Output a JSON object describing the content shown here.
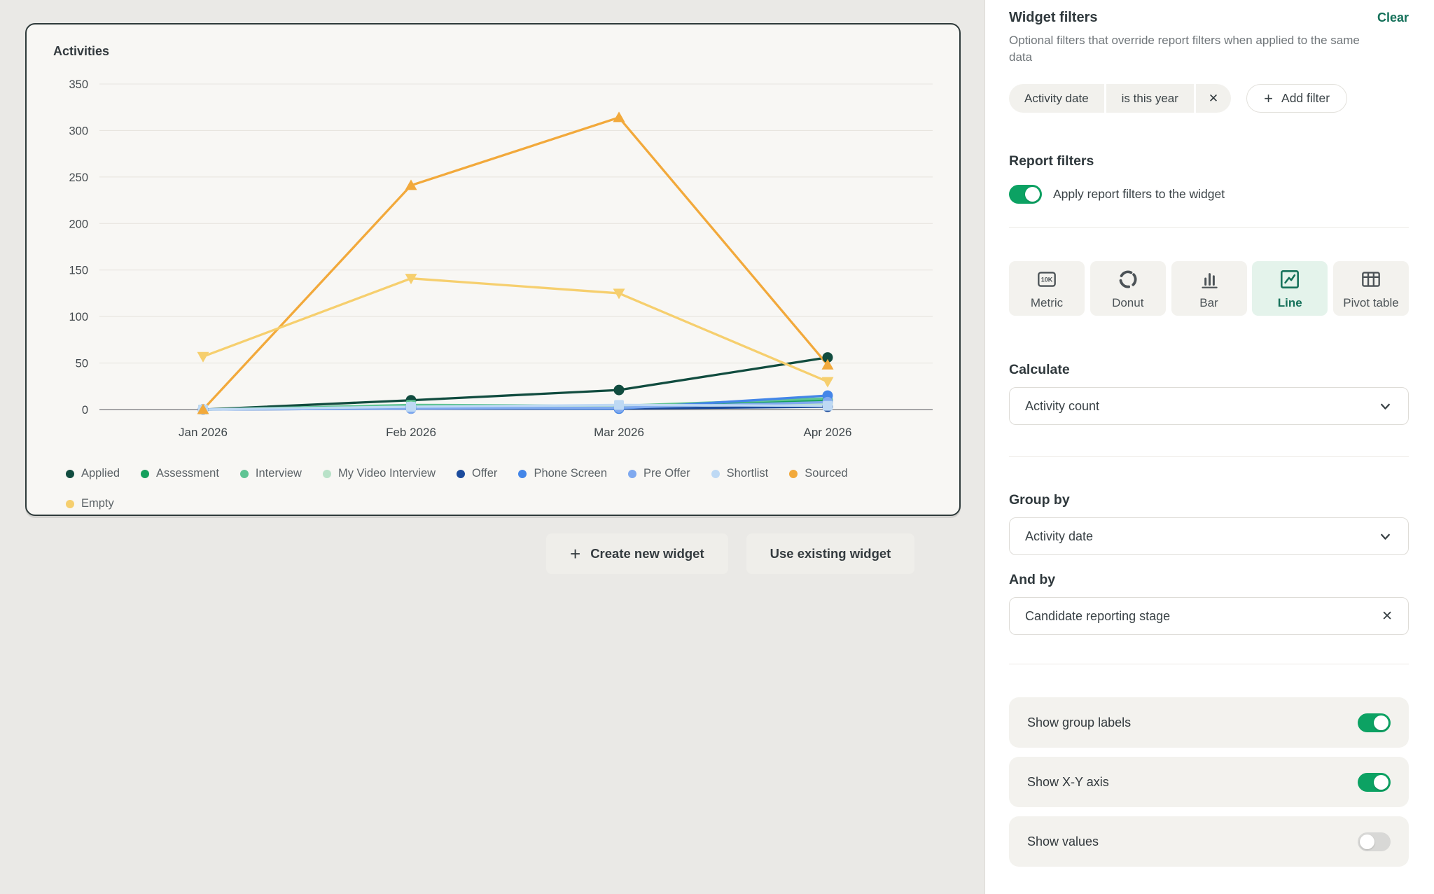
{
  "icons": {
    "plus": "+",
    "close": "✕"
  },
  "chart_card": {
    "title": "Activities"
  },
  "chart_data": {
    "type": "line",
    "title": "Activities",
    "categories": [
      "Jan 2026",
      "Feb 2026",
      "Mar 2026",
      "Apr 2026"
    ],
    "series": [
      {
        "name": "Applied",
        "color": "#114c3f",
        "marker": "circle",
        "values": [
          0,
          10,
          21,
          56
        ]
      },
      {
        "name": "Assessment",
        "color": "#16a05d",
        "marker": "circle",
        "values": [
          0,
          2,
          2,
          10
        ]
      },
      {
        "name": "Interview",
        "color": "#5fc493",
        "marker": "square",
        "values": [
          0,
          5,
          4,
          12
        ]
      },
      {
        "name": "My Video Interview",
        "color": "#b9e2c8",
        "marker": "circle",
        "values": [
          0,
          3,
          3,
          6
        ]
      },
      {
        "name": "Offer",
        "color": "#1c4b9c",
        "marker": "circle",
        "values": [
          0,
          1,
          1,
          3
        ]
      },
      {
        "name": "Phone Screen",
        "color": "#4486e8",
        "marker": "circle",
        "values": [
          0,
          2,
          1,
          15
        ]
      },
      {
        "name": "Pre Offer",
        "color": "#7fa9ef",
        "marker": "circle",
        "values": [
          0,
          1,
          2,
          8
        ]
      },
      {
        "name": "Shortlist",
        "color": "#bed9f4",
        "marker": "square",
        "values": [
          0,
          3,
          5,
          4
        ]
      },
      {
        "name": "Sourced",
        "color": "#f2a93b",
        "marker": "triangle-up",
        "values": [
          0,
          241,
          314,
          48
        ]
      },
      {
        "name": "Empty",
        "color": "#f6cf6e",
        "marker": "triangle-down",
        "values": [
          57,
          141,
          125,
          30
        ]
      }
    ],
    "ylim": [
      0,
      350
    ],
    "ytick_step": 50,
    "grid": true,
    "legend_position": "bottom"
  },
  "actions": {
    "create_new_widget": "Create new widget",
    "use_existing_widget": "Use existing widget"
  },
  "panel": {
    "widget_filters": {
      "title": "Widget filters",
      "clear": "Clear",
      "description": "Optional filters that override report filters when applied to the same data",
      "chip": {
        "field": "Activity date",
        "condition": "is this year"
      },
      "add_filter": "Add filter"
    },
    "report_filters": {
      "title": "Report filters",
      "toggle_label": "Apply report filters to the widget",
      "enabled": true
    },
    "chart_types": {
      "options": [
        {
          "label": "Metric"
        },
        {
          "label": "Donut"
        },
        {
          "label": "Bar"
        },
        {
          "label": "Line"
        },
        {
          "label": "Pivot table"
        }
      ],
      "selected": "Line"
    },
    "calculate": {
      "label": "Calculate",
      "value": "Activity count"
    },
    "group_by": {
      "label": "Group by",
      "value": "Activity date"
    },
    "and_by": {
      "label": "And by",
      "value": "Candidate reporting stage"
    },
    "display_toggles": [
      {
        "label": "Show group labels",
        "enabled": true
      },
      {
        "label": "Show X-Y axis",
        "enabled": true
      },
      {
        "label": "Show values",
        "enabled": false
      }
    ]
  },
  "colors": {
    "accent_teal": "#15715a",
    "toggle_on": "#0ca263",
    "selected_bg": "#e4f3eb",
    "card_border": "#2e3a3a",
    "panel_bg": "#ffffff",
    "canvas_bg": "#eae9e6"
  }
}
